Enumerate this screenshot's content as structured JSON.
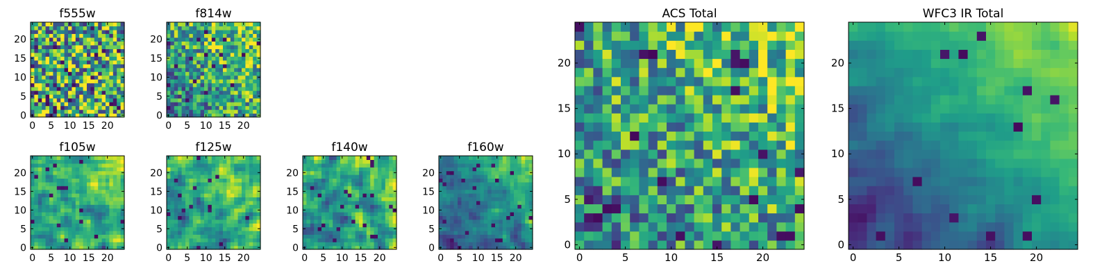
{
  "chart_data": [
    {
      "type": "heatmap",
      "title": "f555w",
      "grid": [
        25,
        25
      ],
      "xticks": [
        0,
        5,
        10,
        15,
        20
      ],
      "yticks": [
        0,
        5,
        10,
        15,
        20
      ],
      "xlim": [
        0,
        24
      ],
      "ylim": [
        0,
        24
      ],
      "colormap": "viridis",
      "pattern": "uniform-noise"
    },
    {
      "type": "heatmap",
      "title": "f814w",
      "grid": [
        25,
        25
      ],
      "xticks": [
        0,
        5,
        10,
        15,
        20
      ],
      "yticks": [
        0,
        5,
        10,
        15,
        20
      ],
      "xlim": [
        0,
        24
      ],
      "ylim": [
        0,
        24
      ],
      "colormap": "viridis",
      "pattern": "noise-brighter-top-right"
    },
    {
      "type": "heatmap",
      "title": "f105w",
      "grid": [
        25,
        25
      ],
      "xticks": [
        0,
        5,
        10,
        15,
        20
      ],
      "yticks": [
        0,
        5,
        10,
        15,
        20
      ],
      "xlim": [
        0,
        24
      ],
      "ylim": [
        0,
        24
      ],
      "colormap": "viridis",
      "pattern": "smooth-brighter-top-right"
    },
    {
      "type": "heatmap",
      "title": "f125w",
      "grid": [
        25,
        25
      ],
      "xticks": [
        0,
        5,
        10,
        15,
        20
      ],
      "yticks": [
        0,
        5,
        10,
        15,
        20
      ],
      "xlim": [
        0,
        24
      ],
      "ylim": [
        0,
        24
      ],
      "colormap": "viridis",
      "pattern": "smooth-bright"
    },
    {
      "type": "heatmap",
      "title": "f140w",
      "grid": [
        25,
        25
      ],
      "xticks": [
        0,
        5,
        10,
        15,
        20
      ],
      "yticks": [
        0,
        5,
        10,
        15,
        20
      ],
      "xlim": [
        0,
        24
      ],
      "ylim": [
        0,
        24
      ],
      "colormap": "viridis",
      "pattern": "smooth-brighter-top-right"
    },
    {
      "type": "heatmap",
      "title": "f160w",
      "grid": [
        25,
        25
      ],
      "xticks": [
        0,
        5,
        10,
        15,
        20
      ],
      "yticks": [
        0,
        5,
        10,
        15,
        20
      ],
      "xlim": [
        0,
        24
      ],
      "ylim": [
        0,
        24
      ],
      "colormap": "viridis",
      "pattern": "smooth-dark-bottom-left"
    },
    {
      "type": "heatmap",
      "title": "ACS Total",
      "grid": [
        25,
        25
      ],
      "xticks": [
        0,
        5,
        10,
        15,
        20
      ],
      "yticks": [
        0,
        5,
        10,
        15,
        20
      ],
      "xlim": [
        0,
        24
      ],
      "ylim": [
        0,
        24
      ],
      "colormap": "viridis",
      "pattern": "noise-brighter-top-right"
    },
    {
      "type": "heatmap",
      "title": "WFC3 IR Total",
      "grid": [
        25,
        25
      ],
      "xticks": [
        0,
        5,
        10,
        15,
        20
      ],
      "yticks": [
        0,
        5,
        10,
        15,
        20
      ],
      "xlim": [
        0,
        24
      ],
      "ylim": [
        0,
        24
      ],
      "colormap": "viridis",
      "pattern": "gradient-bright-top-right-dark-bottom"
    }
  ]
}
